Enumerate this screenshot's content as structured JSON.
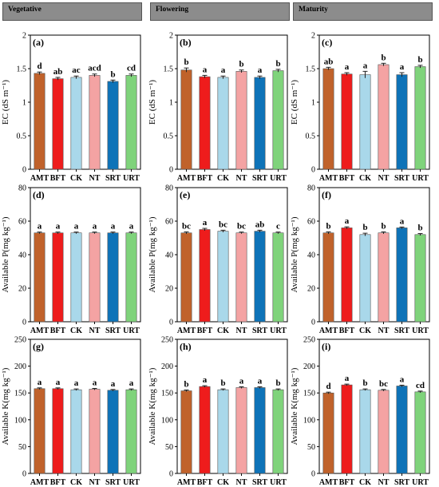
{
  "headers": [
    "Vegetative",
    "Flowering",
    "Maturity"
  ],
  "colors": {
    "AMT": "#c0622b",
    "BFT": "#ee1c1c",
    "CK": "#a9d8ea",
    "NT": "#f4a3a3",
    "SRT": "#0e73b8",
    "URT": "#7fd37b"
  },
  "chart_data": [
    {
      "type": "bar",
      "panel": "(a)",
      "categories": [
        "AMT",
        "BFT",
        "CK",
        "NT",
        "SRT",
        "URT"
      ],
      "values": [
        1.43,
        1.35,
        1.37,
        1.4,
        1.31,
        1.4
      ],
      "errors": [
        0.02,
        0.02,
        0.02,
        0.02,
        0.02,
        0.02
      ],
      "letters": [
        "d",
        "ab",
        "ac",
        "acd",
        "b",
        "cd"
      ],
      "ylabel": "EC (dS m⁻¹)",
      "ylim": [
        0,
        2
      ],
      "yticks": [
        0,
        0.5,
        1,
        1.5,
        2
      ],
      "yticklabels": [
        "0",
        "0.5",
        "1",
        "1.5",
        "2"
      ]
    },
    {
      "type": "bar",
      "panel": "(b)",
      "categories": [
        "AMT",
        "BFT",
        "CK",
        "NT",
        "SRT",
        "URT"
      ],
      "values": [
        1.48,
        1.38,
        1.37,
        1.46,
        1.37,
        1.47
      ],
      "errors": [
        0.03,
        0.02,
        0.02,
        0.02,
        0.02,
        0.02
      ],
      "letters": [
        "b",
        "a",
        "a",
        "b",
        "a",
        "b"
      ],
      "ylabel": "EC (dS m⁻¹)",
      "ylim": [
        0,
        2
      ],
      "yticks": [
        0,
        0.5,
        1,
        1.5,
        2
      ],
      "yticklabels": [
        "0",
        "0.5",
        "1",
        "1.5",
        "2"
      ]
    },
    {
      "type": "bar",
      "panel": "(c)",
      "categories": [
        "AMT",
        "BFT",
        "CK",
        "NT",
        "SRT",
        "URT"
      ],
      "values": [
        1.5,
        1.42,
        1.41,
        1.56,
        1.41,
        1.53
      ],
      "errors": [
        0.02,
        0.02,
        0.05,
        0.02,
        0.03,
        0.02
      ],
      "letters": [
        "ab",
        "a",
        "a",
        "b",
        "a",
        "b"
      ],
      "ylabel": "EC (dS m⁻¹)",
      "ylim": [
        0,
        2
      ],
      "yticks": [
        0,
        0.5,
        1,
        1.5,
        2
      ],
      "yticklabels": [
        "0",
        "0.5",
        "1",
        "1.5",
        "2"
      ]
    },
    {
      "type": "bar",
      "panel": "(d)",
      "categories": [
        "AMT",
        "BFT",
        "CK",
        "NT",
        "SRT",
        "URT"
      ],
      "values": [
        53,
        53,
        53,
        53,
        53,
        53
      ],
      "errors": [
        0.5,
        0.5,
        0.5,
        0.5,
        0.5,
        0.5
      ],
      "letters": [
        "a",
        "a",
        "a",
        "a",
        "a",
        "a"
      ],
      "ylabel": "Available P(mg kg⁻¹)",
      "ylim": [
        0,
        80
      ],
      "yticks": [
        0,
        20,
        40,
        60,
        80
      ],
      "yticklabels": [
        "0",
        "20",
        "40",
        "60",
        "80"
      ]
    },
    {
      "type": "bar",
      "panel": "(e)",
      "categories": [
        "AMT",
        "BFT",
        "CK",
        "NT",
        "SRT",
        "URT"
      ],
      "values": [
        53,
        55,
        54,
        53,
        54,
        53
      ],
      "errors": [
        0.6,
        0.7,
        0.6,
        0.5,
        0.6,
        0.5
      ],
      "letters": [
        "bc",
        "a",
        "bc",
        "bc",
        "ab",
        "c"
      ],
      "ylabel": "Available P(mg kg⁻¹)",
      "ylim": [
        0,
        80
      ],
      "yticks": [
        0,
        20,
        40,
        60,
        80
      ],
      "yticklabels": [
        "0",
        "20",
        "40",
        "60",
        "80"
      ]
    },
    {
      "type": "bar",
      "panel": "(f)",
      "categories": [
        "AMT",
        "BFT",
        "CK",
        "NT",
        "SRT",
        "URT"
      ],
      "values": [
        53,
        56,
        52,
        53,
        56,
        52
      ],
      "errors": [
        0.6,
        0.6,
        0.8,
        0.6,
        0.5,
        0.6
      ],
      "letters": [
        "b",
        "a",
        "b",
        "b",
        "a",
        "b"
      ],
      "ylabel": "Available P(mg kg⁻¹)",
      "ylim": [
        0,
        80
      ],
      "yticks": [
        0,
        20,
        40,
        60,
        80
      ],
      "yticklabels": [
        "0",
        "20",
        "40",
        "60",
        "80"
      ]
    },
    {
      "type": "bar",
      "panel": "(g)",
      "categories": [
        "AMT",
        "BFT",
        "CK",
        "NT",
        "SRT",
        "URT"
      ],
      "values": [
        158,
        158,
        156,
        157,
        155,
        156
      ],
      "errors": [
        1.5,
        1.5,
        1.5,
        1.5,
        1.5,
        1.5
      ],
      "letters": [
        "a",
        "a",
        "a",
        "a",
        "a",
        "a"
      ],
      "ylabel": "Available K(mg kg⁻¹)",
      "ylim": [
        0,
        250
      ],
      "yticks": [
        0,
        50,
        100,
        150,
        200,
        250
      ],
      "yticklabels": [
        "0",
        "50",
        "100",
        "150",
        "200",
        "250"
      ]
    },
    {
      "type": "bar",
      "panel": "(h)",
      "categories": [
        "AMT",
        "BFT",
        "CK",
        "NT",
        "SRT",
        "URT"
      ],
      "values": [
        154,
        162,
        156,
        160,
        160,
        156
      ],
      "errors": [
        1.5,
        1.5,
        1.5,
        1.5,
        1.5,
        1.5
      ],
      "letters": [
        "b",
        "a",
        "b",
        "a",
        "a",
        "b"
      ],
      "ylabel": "Available K(mg kg⁻¹)",
      "ylim": [
        0,
        250
      ],
      "yticks": [
        0,
        50,
        100,
        150,
        200,
        250
      ],
      "yticklabels": [
        "0",
        "50",
        "100",
        "150",
        "200",
        "250"
      ]
    },
    {
      "type": "bar",
      "panel": "(i)",
      "categories": [
        "AMT",
        "BFT",
        "CK",
        "NT",
        "SRT",
        "URT"
      ],
      "values": [
        150,
        165,
        156,
        155,
        163,
        152
      ],
      "errors": [
        1.5,
        1.5,
        1.5,
        1.5,
        1.5,
        1.5
      ],
      "letters": [
        "d",
        "a",
        "b",
        "bc",
        "a",
        "cd"
      ],
      "ylabel": "Available K(mg kg⁻¹)",
      "ylim": [
        0,
        250
      ],
      "yticks": [
        0,
        50,
        100,
        150,
        200,
        250
      ],
      "yticklabels": [
        "0",
        "50",
        "100",
        "150",
        "200",
        "250"
      ]
    }
  ]
}
